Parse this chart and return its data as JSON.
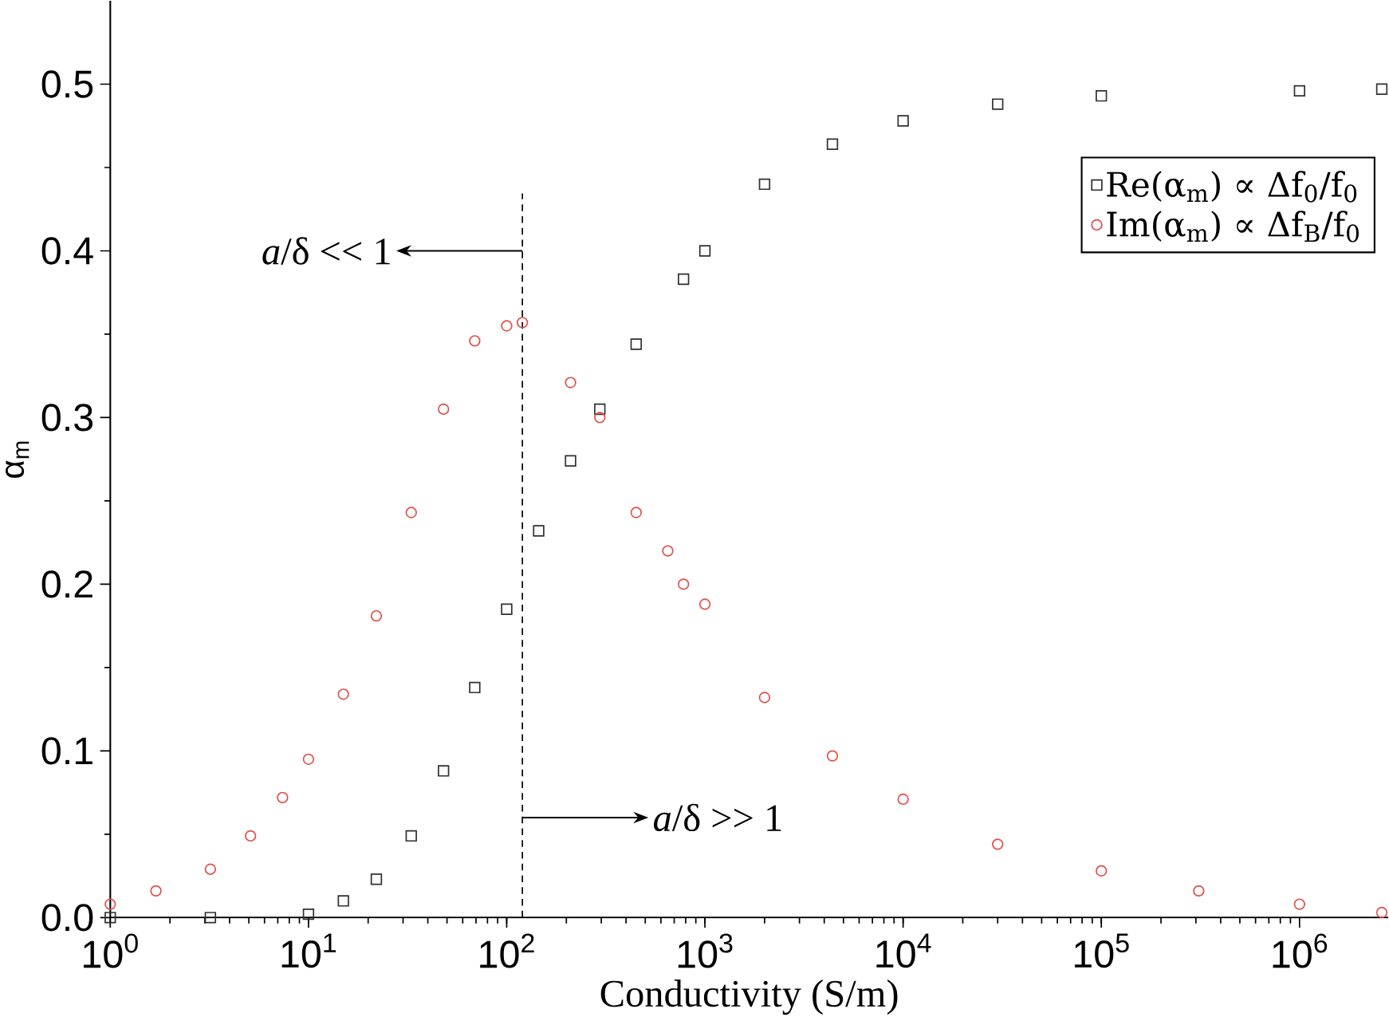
{
  "chart_data": {
    "type": "scatter",
    "xlabel": "Conductivity (S/m)",
    "ylabel": "α$_{m}$",
    "log": "x",
    "xlim": [
      1,
      2800000
    ],
    "ylim": [
      0,
      0.55
    ],
    "xticks": [
      {
        "value": 1,
        "label": "10$^{0}$"
      },
      {
        "value": 10,
        "label": "10$^{1}$"
      },
      {
        "value": 100,
        "label": "10$^{2}$"
      },
      {
        "value": 1000,
        "label": "10$^{3}$"
      },
      {
        "value": 10000,
        "label": "10$^{4}$"
      },
      {
        "value": 100000,
        "label": "10$^{5}$"
      },
      {
        "value": 1000000,
        "label": "10$^{6}$"
      }
    ],
    "yticks": [
      {
        "value": 0,
        "label": "0.0"
      },
      0.1,
      0.2,
      0.3,
      0.4,
      0.5
    ],
    "legend": "top right",
    "grid": false,
    "series": [
      {
        "name": "Re(α$_{m}$) ∝ Δf$_{0}$/f$_{0}$",
        "color": "#303030",
        "marker": "square",
        "x": [
          1,
          3.2,
          10,
          15,
          22,
          33,
          48,
          69,
          100,
          145,
          210,
          295,
          450,
          780,
          1000,
          2000,
          4400,
          10000,
          30000,
          100000,
          1000000,
          2600000
        ],
        "values": [
          0,
          0,
          0.002,
          0.01,
          0.023,
          0.049,
          0.088,
          0.138,
          0.185,
          0.232,
          0.274,
          0.305,
          0.344,
          0.383,
          0.4,
          0.44,
          0.464,
          0.478,
          0.488,
          0.493,
          0.496,
          0.497
        ]
      },
      {
        "name": "Im(α$_{m}$) ∝ Δf$_{B}$/f$_{0}$",
        "color": "#e0504a",
        "marker": "circle",
        "x": [
          1,
          1.7,
          3.2,
          5.1,
          7.4,
          10,
          15,
          22,
          33,
          48,
          69,
          100,
          120,
          210,
          295,
          450,
          650,
          780,
          1000,
          2000,
          4400,
          10000,
          30000,
          100000,
          310000,
          1000000,
          2600000
        ],
        "values": [
          0.008,
          0.016,
          0.029,
          0.049,
          0.072,
          0.095,
          0.134,
          0.181,
          0.243,
          0.305,
          0.346,
          0.355,
          0.357,
          0.321,
          0.3,
          0.243,
          0.22,
          0.2,
          0.188,
          0.132,
          0.097,
          0.071,
          0.044,
          0.028,
          0.016,
          0.008,
          0.003
        ]
      }
    ],
    "ref_lines": [
      {
        "axis": "x",
        "value": 120,
        "color": "#000000",
        "line_style": "dashed"
      }
    ],
    "annotations": [
      {
        "text": "*a*/δ << 1",
        "x": 120,
        "y": 0.4
      },
      {
        "text": "*a*/δ >> 1",
        "x": 120,
        "y": 0.06
      }
    ]
  }
}
